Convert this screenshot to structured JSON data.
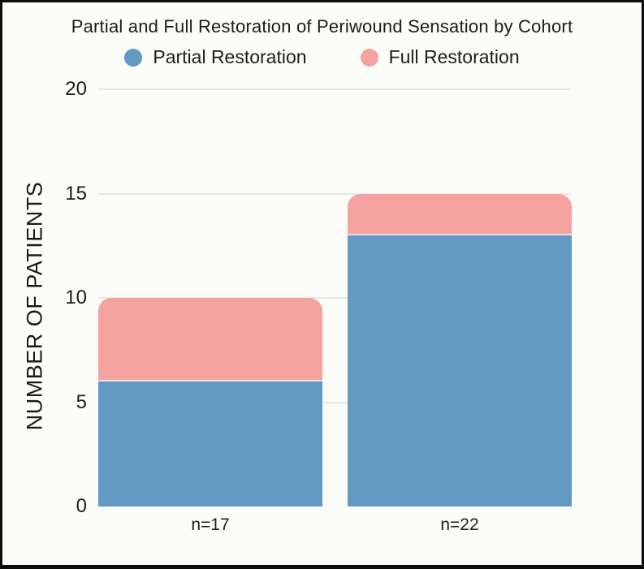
{
  "chart_data": {
    "type": "bar",
    "stacked": true,
    "title": "Partial and Full Restoration of Periwound Sensation by Cohort",
    "ylabel": "NUMBER OF PATIENTS",
    "xlabel": "",
    "categories": [
      "n=17",
      "n=22"
    ],
    "series": [
      {
        "name": "Partial Restoration",
        "color": "#639ac4",
        "values": [
          6,
          13
        ]
      },
      {
        "name": "Full Restoration",
        "color": "#f4a3a1",
        "values": [
          4,
          2
        ]
      }
    ],
    "totals": [
      10,
      15
    ],
    "ylim": [
      0,
      20
    ],
    "yticks": [
      0,
      5,
      10,
      15,
      20
    ],
    "grid": true,
    "legend_position": "top"
  },
  "colors": {
    "background": "#fcfcf9",
    "frame_border": "#0d0d0d",
    "gridline": "#e9e8e4",
    "text": "#1c1c1c",
    "partial_blue": "#639ac4",
    "full_pink": "#f4a3a1"
  }
}
